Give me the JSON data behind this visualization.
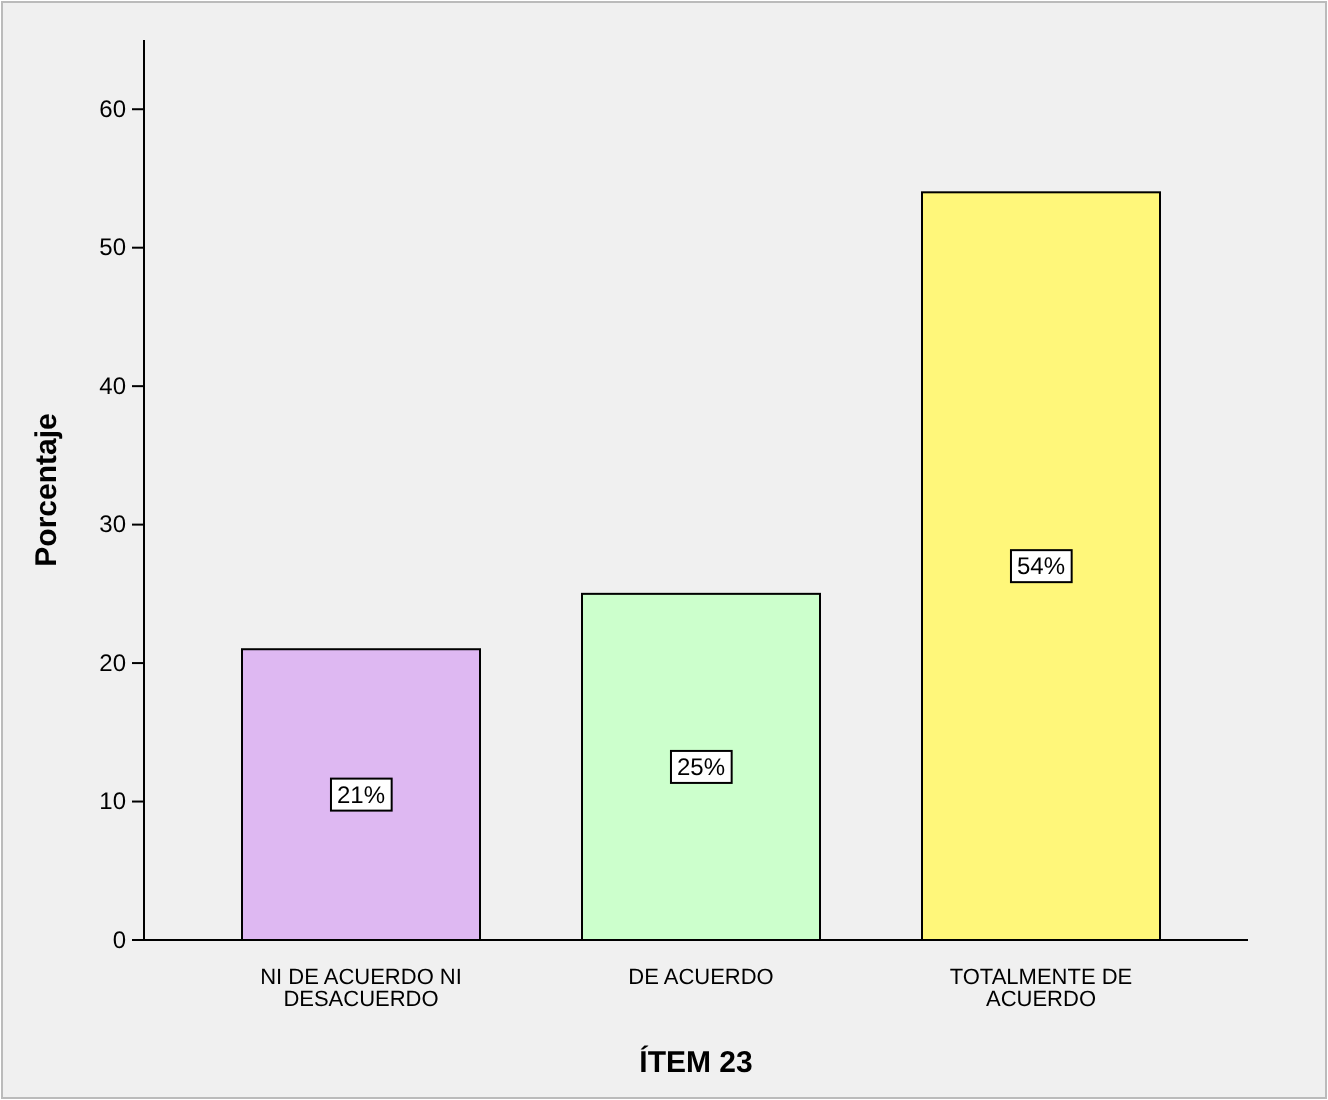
{
  "chart_data": {
    "type": "bar",
    "xlabel": "ÍTEM 23",
    "ylabel": "Porcentaje",
    "categories": [
      "NI DE ACUERDO NI DESACUERDO",
      "DE ACUERDO",
      "TOTALMENTE DE ACUERDO"
    ],
    "values": [
      21,
      25,
      54
    ],
    "colors": [
      "#deb8f2",
      "#ccffcc",
      "#fff77a"
    ],
    "value_labels": [
      "21%",
      "25%",
      "54%"
    ],
    "ylim": [
      0,
      65
    ],
    "yticks": [
      0,
      10,
      20,
      30,
      40,
      50,
      60
    ]
  }
}
